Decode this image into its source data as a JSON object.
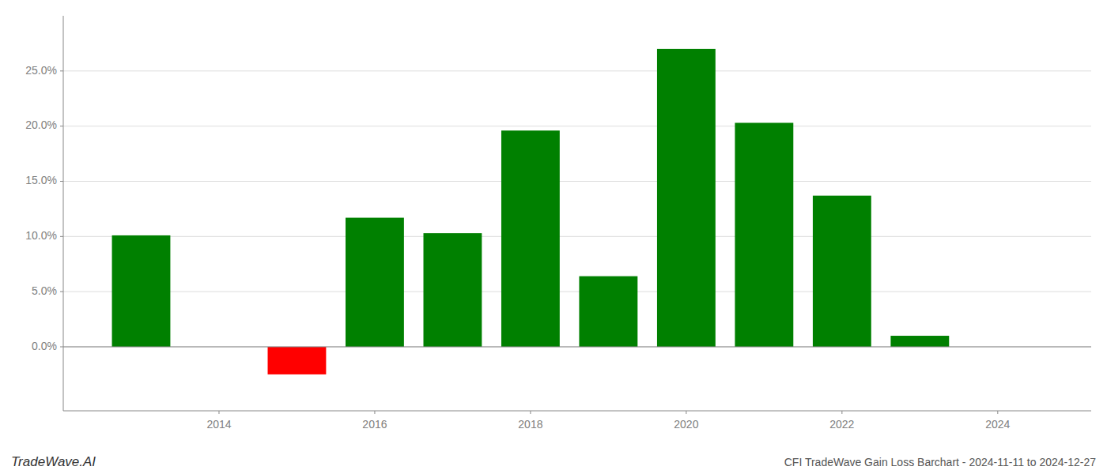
{
  "chart_data": {
    "type": "bar",
    "x": [
      2013,
      2015,
      2016,
      2017,
      2018,
      2019,
      2020,
      2021,
      2022,
      2023
    ],
    "values": [
      0.101,
      -0.025,
      0.117,
      0.103,
      0.196,
      0.064,
      0.27,
      0.203,
      0.137,
      0.01
    ],
    "colors": [
      "#008000",
      "#ff0000",
      "#008000",
      "#008000",
      "#008000",
      "#008000",
      "#008000",
      "#008000",
      "#008000",
      "#008000"
    ],
    "xlim": [
      2012.0,
      2025.2
    ],
    "xticks": [
      2014,
      2016,
      2018,
      2020,
      2022,
      2024
    ],
    "ylim": [
      -0.058,
      0.3
    ],
    "yticks": [
      {
        "value": 0.0,
        "label": "0.0%"
      },
      {
        "value": 0.05,
        "label": "5.0%"
      },
      {
        "value": 0.1,
        "label": "10.0%"
      },
      {
        "value": 0.15,
        "label": "15.0%"
      },
      {
        "value": 0.2,
        "label": "20.0%"
      },
      {
        "value": 0.25,
        "label": "25.0%"
      }
    ],
    "grid": true,
    "annotations": [
      "TradeWave.AI",
      "CFI TradeWave Gain Loss Barchart - 2024-11-11 to 2024-12-27"
    ]
  }
}
